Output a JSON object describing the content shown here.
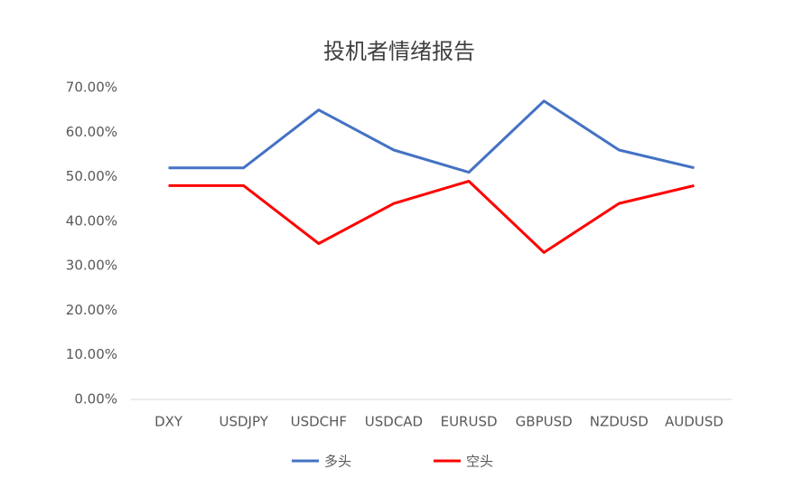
{
  "chart_data": {
    "type": "line",
    "title": "投机者情绪报告",
    "categories": [
      "DXY",
      "USDJPY",
      "USDCHF",
      "USDCAD",
      "EURUSD",
      "GBPUSD",
      "NZDUSD",
      "AUDUSD"
    ],
    "series": [
      {
        "name": "多头",
        "color": "#4472c4",
        "values": [
          52,
          52,
          65,
          56,
          51,
          67,
          56,
          52
        ]
      },
      {
        "name": "空头",
        "color": "#ff0000",
        "values": [
          48,
          48,
          35,
          44,
          49,
          33,
          44,
          48
        ]
      }
    ],
    "ylim": [
      0,
      70
    ],
    "yticks": [
      {
        "value": 0,
        "label": "0.00%"
      },
      {
        "value": 10,
        "label": "10.00%"
      },
      {
        "value": 20,
        "label": "20.00%"
      },
      {
        "value": 30,
        "label": "30.00%"
      },
      {
        "value": 40,
        "label": "40.00%"
      },
      {
        "value": 50,
        "label": "50.00%"
      },
      {
        "value": 60,
        "label": "60.00%"
      },
      {
        "value": 70,
        "label": "70.00%"
      }
    ],
    "grid": false,
    "legend": "bottom"
  }
}
